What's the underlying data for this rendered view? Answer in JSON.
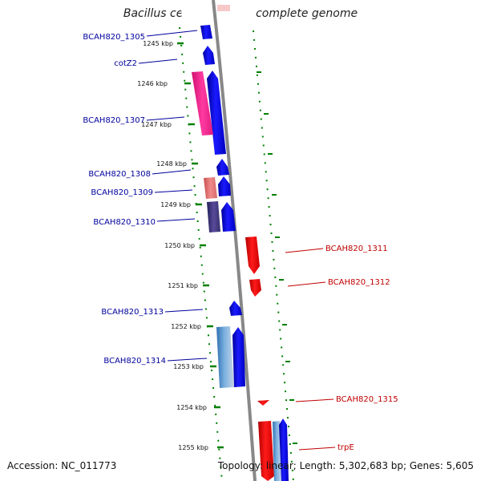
{
  "title": "Bacillus cereus AH820, complete genome",
  "accession": "Accession: NC_011773",
  "summary": "Topology: linear; Length: 5,302,683 bp; Genes: 5,605",
  "colors": {
    "forward": "#0000ee",
    "reverse": "#ee0000",
    "backbone": "#888888",
    "ticks": "#008000",
    "label_fwd": "#00009c",
    "label_rev": "#c00000"
  },
  "ticks": [
    "1245 kbp",
    "1246 kbp",
    "1247 kbp",
    "1248 kbp",
    "1249 kbp",
    "1250 kbp",
    "1251 kbp",
    "1252 kbp",
    "1253 kbp",
    "1254 kbp",
    "1255 kbp"
  ],
  "gene_labels": [
    {
      "name": "BCAH820_1305",
      "strand": "forward"
    },
    {
      "name": "cotZ2",
      "strand": "forward"
    },
    {
      "name": "BCAH820_1307",
      "strand": "forward"
    },
    {
      "name": "BCAH820_1308",
      "strand": "forward"
    },
    {
      "name": "BCAH820_1309",
      "strand": "forward"
    },
    {
      "name": "BCAH820_1310",
      "strand": "forward"
    },
    {
      "name": "BCAH820_1311",
      "strand": "reverse"
    },
    {
      "name": "BCAH820_1312",
      "strand": "reverse"
    },
    {
      "name": "BCAH820_1313",
      "strand": "forward"
    },
    {
      "name": "BCAH820_1314",
      "strand": "forward"
    },
    {
      "name": "BCAH820_1315",
      "strand": "reverse"
    },
    {
      "name": "trpE",
      "strand": "reverse"
    }
  ]
}
